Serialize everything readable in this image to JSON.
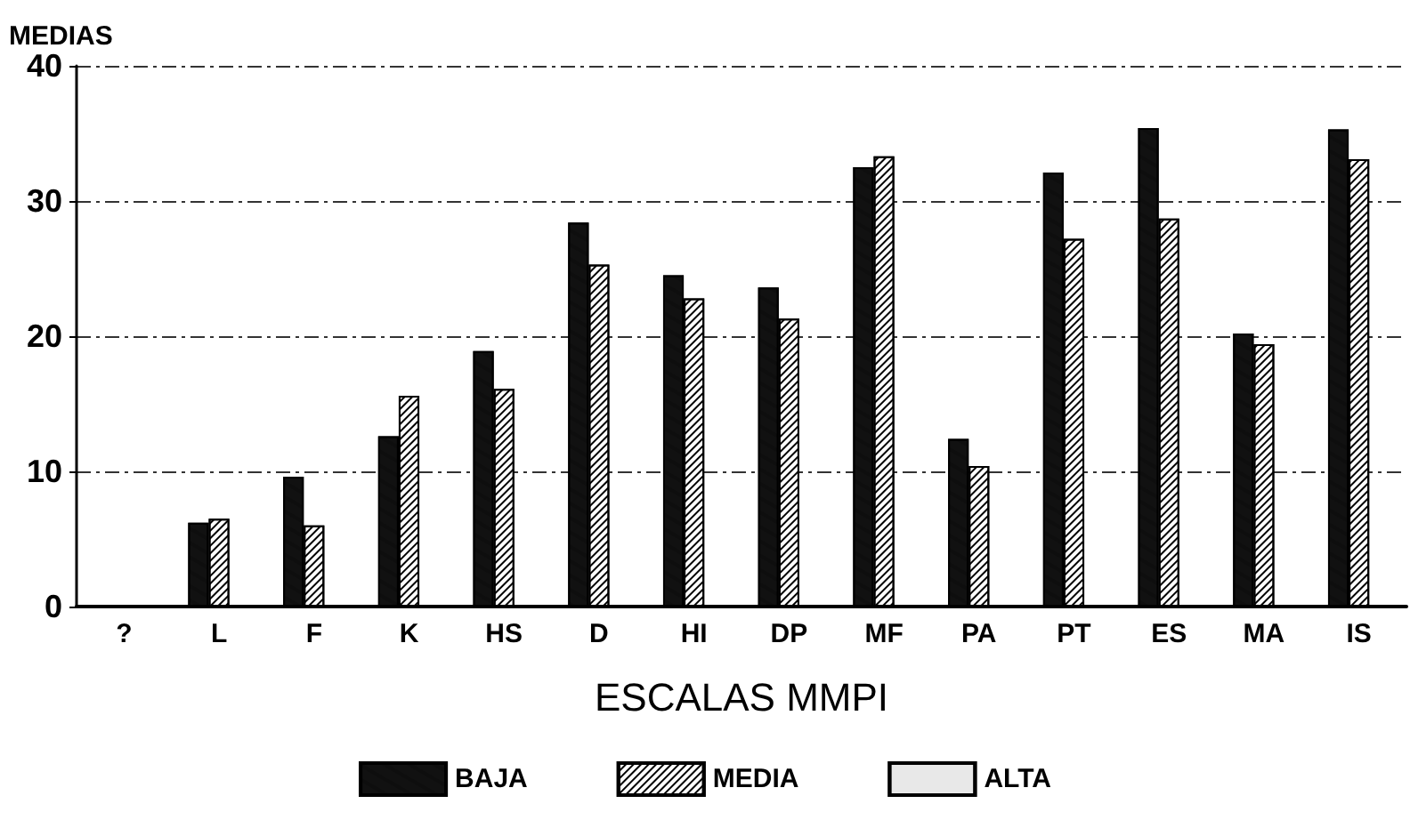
{
  "chart_data": {
    "type": "bar",
    "ylabel": "MEDIAS",
    "xlabel": "ESCALAS MMPI",
    "categories": [
      "?",
      "L",
      "F",
      "K",
      "HS",
      "D",
      "HI",
      "DP",
      "MF",
      "PA",
      "PT",
      "ES",
      "MA",
      "IS"
    ],
    "series": [
      {
        "name": "BAJA",
        "color": "#111111",
        "values": [
          null,
          6.2,
          9.6,
          12.6,
          18.9,
          28.4,
          24.5,
          23.6,
          32.5,
          12.4,
          32.1,
          35.4,
          20.2,
          35.3
        ]
      },
      {
        "name": "MEDIA",
        "color": "#ffffff",
        "values": [
          null,
          6.5,
          6.0,
          15.6,
          16.1,
          25.3,
          22.8,
          21.3,
          33.3,
          10.4,
          27.2,
          28.7,
          19.4,
          33.1
        ]
      },
      {
        "name": "ALTA",
        "color": "#e8e8e8",
        "values": [
          null,
          null,
          null,
          null,
          null,
          null,
          null,
          null,
          null,
          null,
          null,
          null,
          null,
          null
        ]
      }
    ],
    "ylim": [
      0,
      40
    ],
    "yticks": [
      0,
      10,
      20,
      30,
      40
    ],
    "grid": "y",
    "legend": "bottom"
  }
}
